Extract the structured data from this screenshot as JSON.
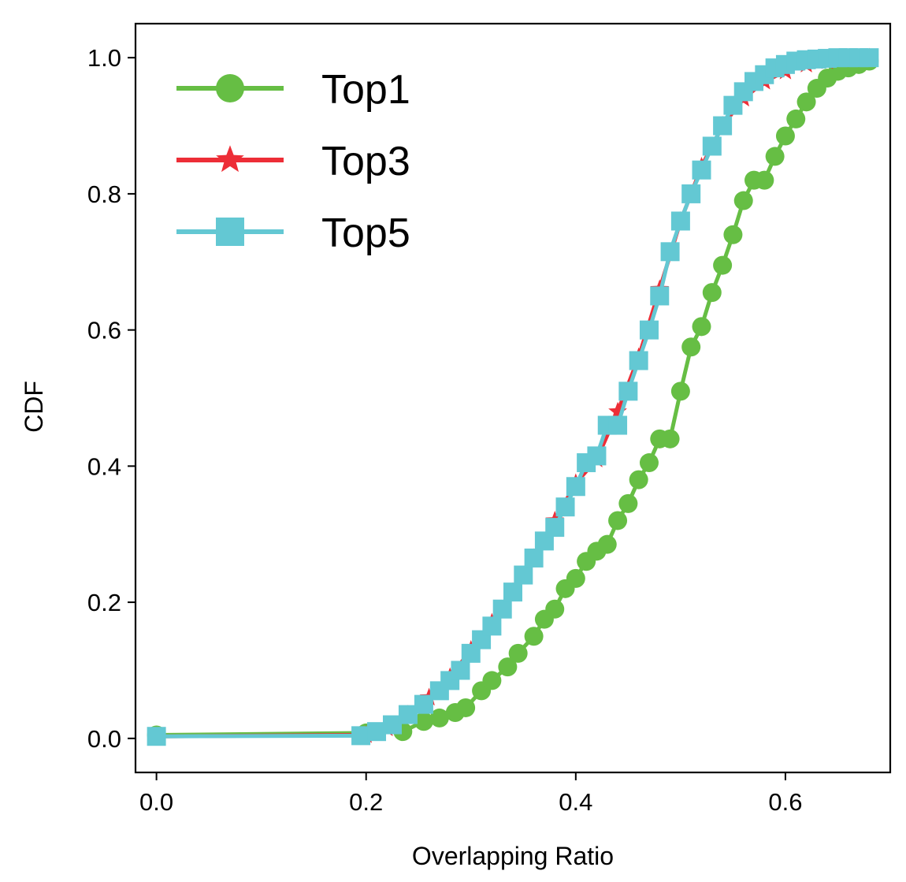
{
  "chart_data": {
    "type": "line",
    "title": "",
    "xlabel": "Overlapping Ratio",
    "ylabel": "CDF",
    "xlim": [
      -0.02,
      0.7
    ],
    "ylim": [
      -0.05,
      1.05
    ],
    "xticks": [
      0.0,
      0.2,
      0.4,
      0.6
    ],
    "xtick_labels": [
      "0.0",
      "0.2",
      "0.4",
      "0.6"
    ],
    "yticks": [
      0.0,
      0.2,
      0.4,
      0.6,
      0.8,
      1.0
    ],
    "ytick_labels": [
      "0.0",
      "0.2",
      "0.4",
      "0.6",
      "0.8",
      "1.0"
    ],
    "grid": false,
    "legend": "upper left",
    "series": [
      {
        "name": "Top1",
        "color": "#66BE44",
        "marker": "circle",
        "x": [
          0.0,
          0.2,
          0.235,
          0.255,
          0.27,
          0.285,
          0.295,
          0.31,
          0.32,
          0.335,
          0.345,
          0.36,
          0.37,
          0.38,
          0.39,
          0.4,
          0.41,
          0.42,
          0.43,
          0.44,
          0.45,
          0.46,
          0.47,
          0.48,
          0.49,
          0.5,
          0.51,
          0.52,
          0.53,
          0.54,
          0.55,
          0.56,
          0.57,
          0.58,
          0.59,
          0.6,
          0.61,
          0.62,
          0.63,
          0.64,
          0.65,
          0.66,
          0.67,
          0.68
        ],
        "y": [
          0.005,
          0.008,
          0.01,
          0.025,
          0.03,
          0.038,
          0.045,
          0.07,
          0.085,
          0.105,
          0.125,
          0.15,
          0.175,
          0.19,
          0.22,
          0.235,
          0.26,
          0.275,
          0.285,
          0.32,
          0.345,
          0.38,
          0.405,
          0.44,
          0.44,
          0.51,
          0.575,
          0.605,
          0.655,
          0.695,
          0.74,
          0.79,
          0.82,
          0.82,
          0.855,
          0.885,
          0.91,
          0.935,
          0.955,
          0.97,
          0.98,
          0.985,
          0.99,
          0.995
        ]
      },
      {
        "name": "Top3",
        "color": "#ED2E37",
        "marker": "star",
        "x": [
          0.0,
          0.2,
          0.22,
          0.24,
          0.26,
          0.28,
          0.3,
          0.32,
          0.34,
          0.36,
          0.38,
          0.4,
          0.42,
          0.44,
          0.46,
          0.48,
          0.5,
          0.52,
          0.54,
          0.56,
          0.58,
          0.6,
          0.62,
          0.64,
          0.66,
          0.68
        ],
        "y": [
          0.003,
          0.005,
          0.015,
          0.035,
          0.06,
          0.09,
          0.13,
          0.17,
          0.215,
          0.265,
          0.32,
          0.375,
          0.41,
          0.48,
          0.56,
          0.66,
          0.76,
          0.84,
          0.9,
          0.94,
          0.965,
          0.98,
          0.99,
          0.995,
          0.998,
          1.0
        ]
      },
      {
        "name": "Top5",
        "color": "#63C8D3",
        "marker": "square",
        "x": [
          0.0,
          0.195,
          0.21,
          0.225,
          0.24,
          0.255,
          0.27,
          0.28,
          0.29,
          0.3,
          0.31,
          0.32,
          0.33,
          0.34,
          0.35,
          0.36,
          0.37,
          0.38,
          0.39,
          0.4,
          0.41,
          0.42,
          0.43,
          0.44,
          0.45,
          0.46,
          0.47,
          0.48,
          0.49,
          0.5,
          0.51,
          0.52,
          0.53,
          0.54,
          0.55,
          0.56,
          0.57,
          0.58,
          0.59,
          0.6,
          0.61,
          0.62,
          0.63,
          0.64,
          0.65,
          0.66,
          0.67,
          0.68
        ],
        "y": [
          0.003,
          0.004,
          0.01,
          0.02,
          0.035,
          0.05,
          0.07,
          0.085,
          0.1,
          0.125,
          0.145,
          0.165,
          0.19,
          0.215,
          0.24,
          0.265,
          0.29,
          0.31,
          0.34,
          0.37,
          0.405,
          0.415,
          0.46,
          0.46,
          0.51,
          0.555,
          0.6,
          0.65,
          0.715,
          0.76,
          0.8,
          0.835,
          0.87,
          0.9,
          0.93,
          0.95,
          0.965,
          0.975,
          0.985,
          0.99,
          0.995,
          0.997,
          0.998,
          0.999,
          1.0,
          1.0,
          1.0,
          1.0
        ]
      }
    ]
  }
}
